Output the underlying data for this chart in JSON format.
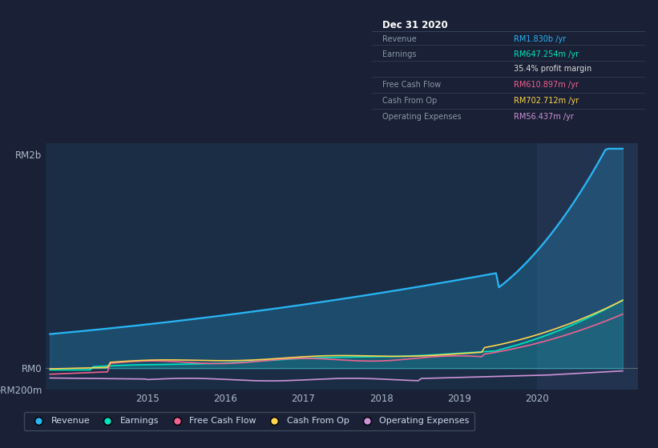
{
  "bg_color": "#1a2035",
  "plot_bg_color": "#1a2d45",
  "plot_bg_highlight": "#22334f",
  "title_date": "Dec 31 2020",
  "table_rows": [
    {
      "label": "Revenue",
      "value": "RM1.830b /yr",
      "value_color": "#29b6f6"
    },
    {
      "label": "Earnings",
      "value": "RM647.254m /yr",
      "value_color": "#00e5c0"
    },
    {
      "label": "",
      "value": "35.4% profit margin",
      "value_color": "#dddddd"
    },
    {
      "label": "Free Cash Flow",
      "value": "RM610.897m /yr",
      "value_color": "#f06292"
    },
    {
      "label": "Cash From Op",
      "value": "RM702.712m /yr",
      "value_color": "#ffd54f"
    },
    {
      "label": "Operating Expenses",
      "value": "RM56.437m /yr",
      "value_color": "#ce93d8"
    }
  ],
  "ylabel_top": "RM2b",
  "ylabel_zero": "RM0",
  "ylabel_bottom": "-RM200m",
  "xticks": [
    2015,
    2016,
    2017,
    2018,
    2019,
    2020
  ],
  "legend": [
    {
      "label": "Revenue",
      "color": "#29b6f6"
    },
    {
      "label": "Earnings",
      "color": "#00e5c0"
    },
    {
      "label": "Free Cash Flow",
      "color": "#f06292"
    },
    {
      "label": "Cash From Op",
      "color": "#ffd54f"
    },
    {
      "label": "Operating Expenses",
      "color": "#ce93d8"
    }
  ],
  "revenue_color": "#29b6f6",
  "earnings_color": "#00e5c0",
  "fcf_color": "#f06292",
  "cashop_color": "#ffd54f",
  "opex_color": "#ce93d8",
  "highlight_x_start": 2020.0,
  "ylim": [
    -200,
    2100
  ],
  "xlim": [
    2013.7,
    2021.3
  ]
}
